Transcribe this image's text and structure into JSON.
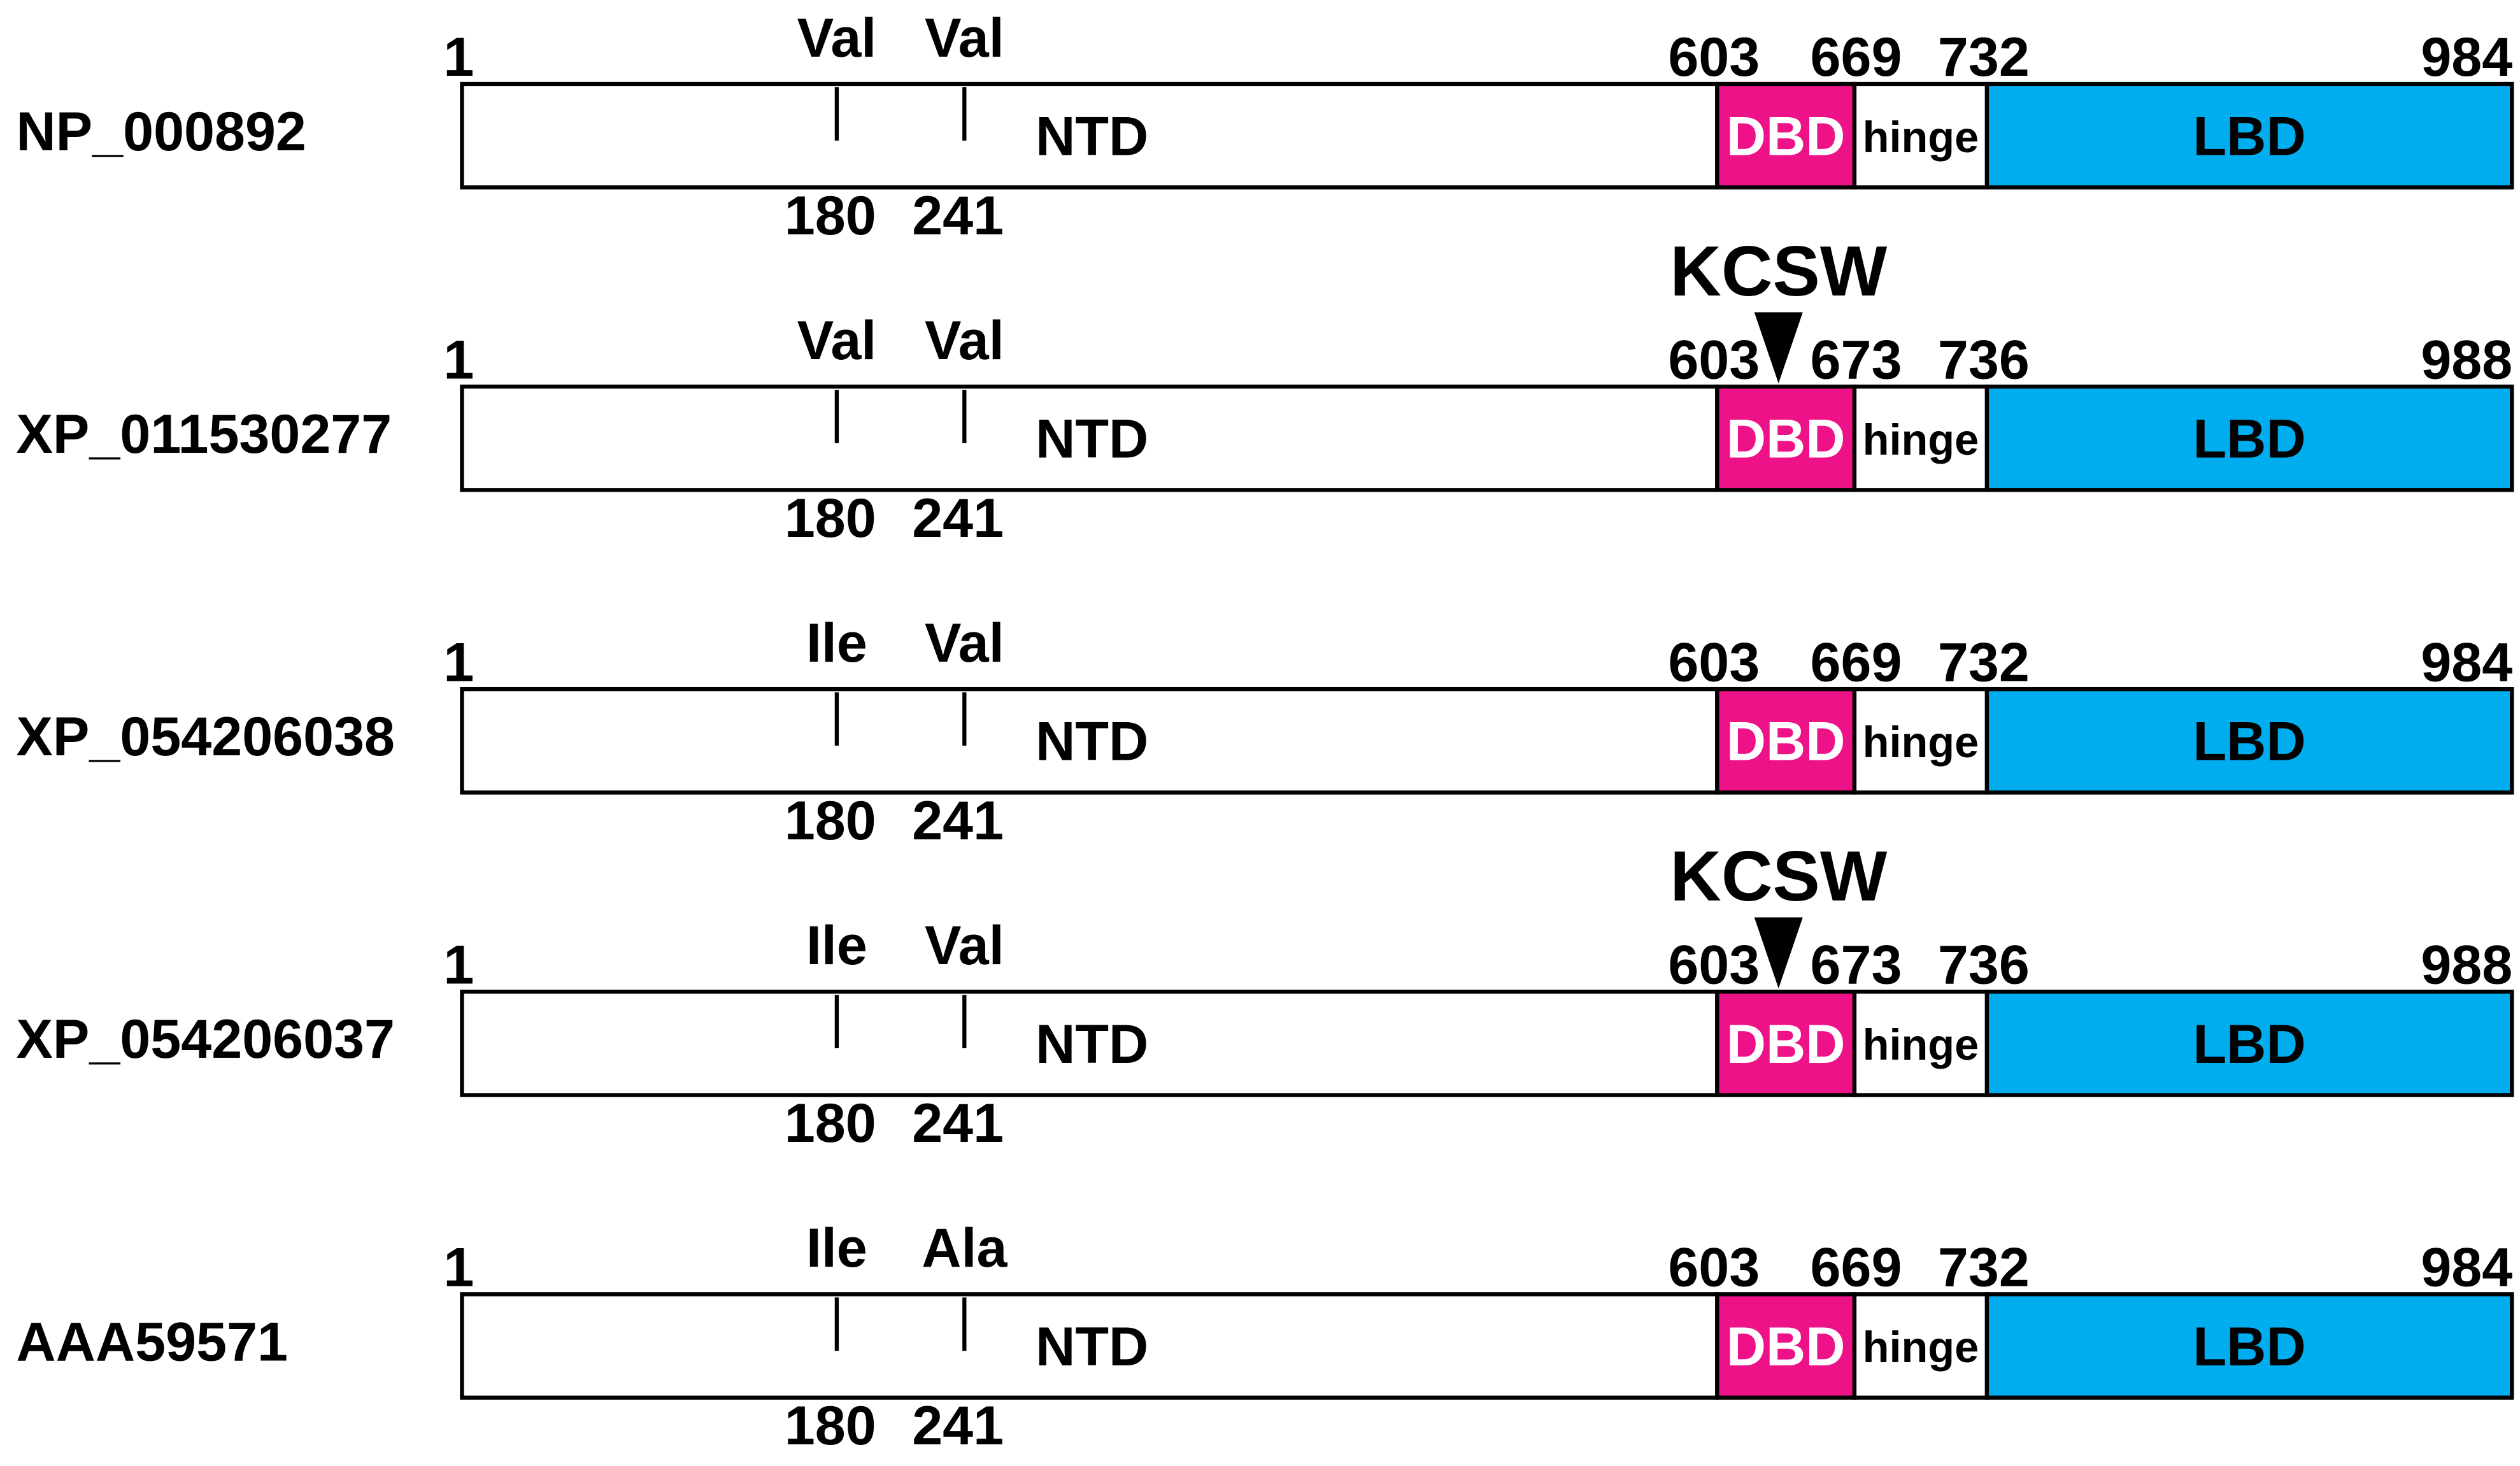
{
  "rows": [
    {
      "name": "NP_000892",
      "start": "1",
      "residues": [
        {
          "aa": "Val",
          "position": "180"
        },
        {
          "aa": "Val",
          "position": "241"
        }
      ],
      "boundaries": [
        "603",
        "669",
        "732",
        "984"
      ],
      "domains": [
        "NTD",
        "DBD",
        "hinge",
        "LBD"
      ]
    },
    {
      "name": "XP_011530277",
      "start": "1",
      "residues": [
        {
          "aa": "Val",
          "position": "180"
        },
        {
          "aa": "Val",
          "position": "241"
        }
      ],
      "boundaries": [
        "603",
        "673",
        "736",
        "988"
      ],
      "domains": [
        "NTD",
        "DBD",
        "hinge",
        "LBD"
      ],
      "insertion": "KCSW"
    },
    {
      "name": "XP_054206038",
      "start": "1",
      "residues": [
        {
          "aa": "Ile",
          "position": "180"
        },
        {
          "aa": "Val",
          "position": "241"
        }
      ],
      "boundaries": [
        "603",
        "669",
        "732",
        "984"
      ],
      "domains": [
        "NTD",
        "DBD",
        "hinge",
        "LBD"
      ]
    },
    {
      "name": "XP_054206037",
      "start": "1",
      "residues": [
        {
          "aa": "Ile",
          "position": "180"
        },
        {
          "aa": "Val",
          "position": "241"
        }
      ],
      "boundaries": [
        "603",
        "673",
        "736",
        "988"
      ],
      "domains": [
        "NTD",
        "DBD",
        "hinge",
        "LBD"
      ],
      "insertion": "KCSW"
    },
    {
      "name": "AAA59571",
      "start": "1",
      "residues": [
        {
          "aa": "Ile",
          "position": "180"
        },
        {
          "aa": "Ala",
          "position": "241"
        }
      ],
      "boundaries": [
        "603",
        "669",
        "732",
        "984"
      ],
      "domains": [
        "NTD",
        "DBD",
        "hinge",
        "LBD"
      ]
    }
  ]
}
